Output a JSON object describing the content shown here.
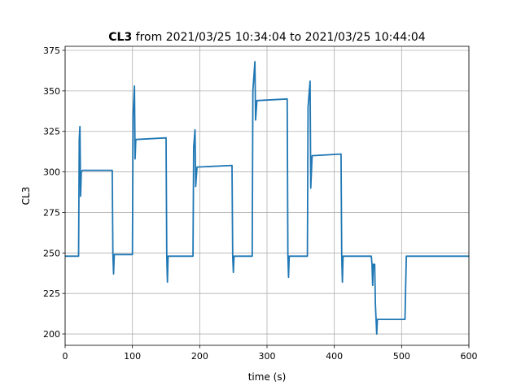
{
  "chart_data": {
    "type": "line",
    "title": {
      "bold": "CL3",
      "rest": "from 2021/03/25 10:34:04 to 2021/03/25 10:44:04"
    },
    "xlabel": "time (s)",
    "ylabel": "CL3",
    "x": [
      0,
      20,
      21,
      22,
      23,
      24,
      26,
      70,
      71,
      72,
      73,
      100,
      101,
      103,
      104,
      105,
      150,
      151,
      152,
      153,
      190,
      191,
      193,
      194,
      196,
      248,
      249,
      250,
      251,
      278,
      279,
      282,
      283,
      285,
      330,
      331,
      332,
      333,
      360,
      361,
      364,
      365,
      367,
      410,
      411,
      412,
      413,
      455,
      456,
      457,
      458,
      460,
      461,
      463,
      464,
      505,
      507,
      600
    ],
    "values": [
      248,
      248,
      320,
      328,
      285,
      300,
      301,
      301,
      249,
      237,
      249,
      249,
      335,
      353,
      308,
      320,
      321,
      249,
      232,
      248,
      248,
      315,
      326,
      291,
      303,
      304,
      248,
      238,
      248,
      248,
      350,
      368,
      332,
      344,
      345,
      249,
      235,
      248,
      248,
      340,
      356,
      290,
      310,
      311,
      249,
      232,
      248,
      248,
      243,
      230,
      243,
      243,
      219,
      200,
      209,
      209,
      248,
      248
    ],
    "color": "#1f77b4",
    "xlim": [
      0,
      600
    ],
    "xticks": [
      0,
      100,
      200,
      300,
      400,
      500,
      600
    ],
    "ylim": [
      193,
      377.5
    ],
    "yticks": [
      200,
      225,
      250,
      275,
      300,
      325,
      350,
      375
    ],
    "grid": true
  }
}
